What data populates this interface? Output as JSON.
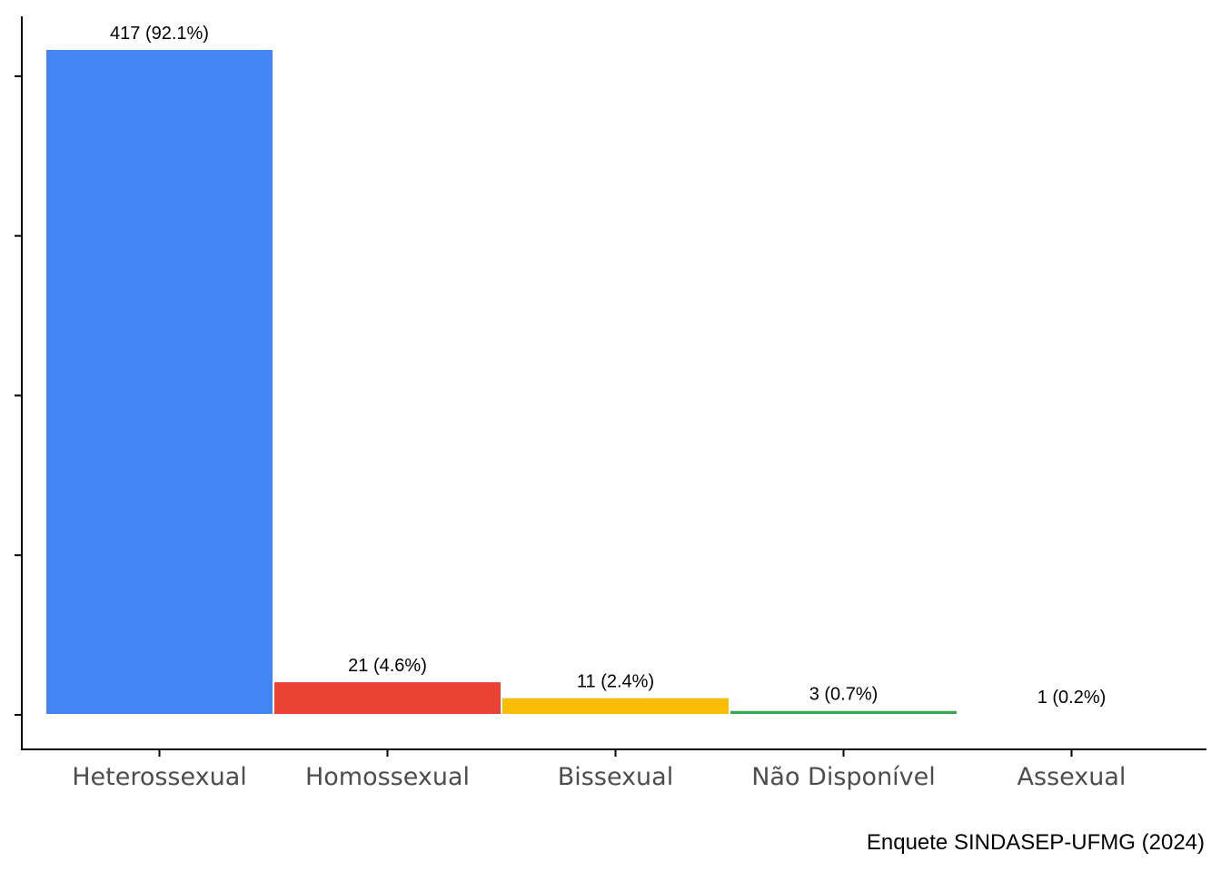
{
  "chart_data": {
    "type": "bar",
    "categories": [
      "Heterossexual",
      "Homossexual",
      "Bissexual",
      "Não Disponível",
      "Assexual"
    ],
    "values": [
      417,
      21,
      11,
      3,
      1
    ],
    "data_labels": [
      "417 (92.1%)",
      "21 (4.6%)",
      "11 (2.4%)",
      "3 (0.7%)",
      "1 (0.2%)"
    ],
    "colors": [
      "#4285F4",
      "#EA4335",
      "#FBBC05",
      "#34A853",
      "#34A853"
    ],
    "ylim": [
      0,
      417
    ],
    "y_tick_values": [
      0,
      100,
      200,
      300,
      400
    ],
    "y_tick_labels_shown": false,
    "grid": false,
    "legend": "none",
    "xlabel": "",
    "ylabel": "",
    "caption": "Enquete SINDASEP-UFMG (2024)"
  }
}
